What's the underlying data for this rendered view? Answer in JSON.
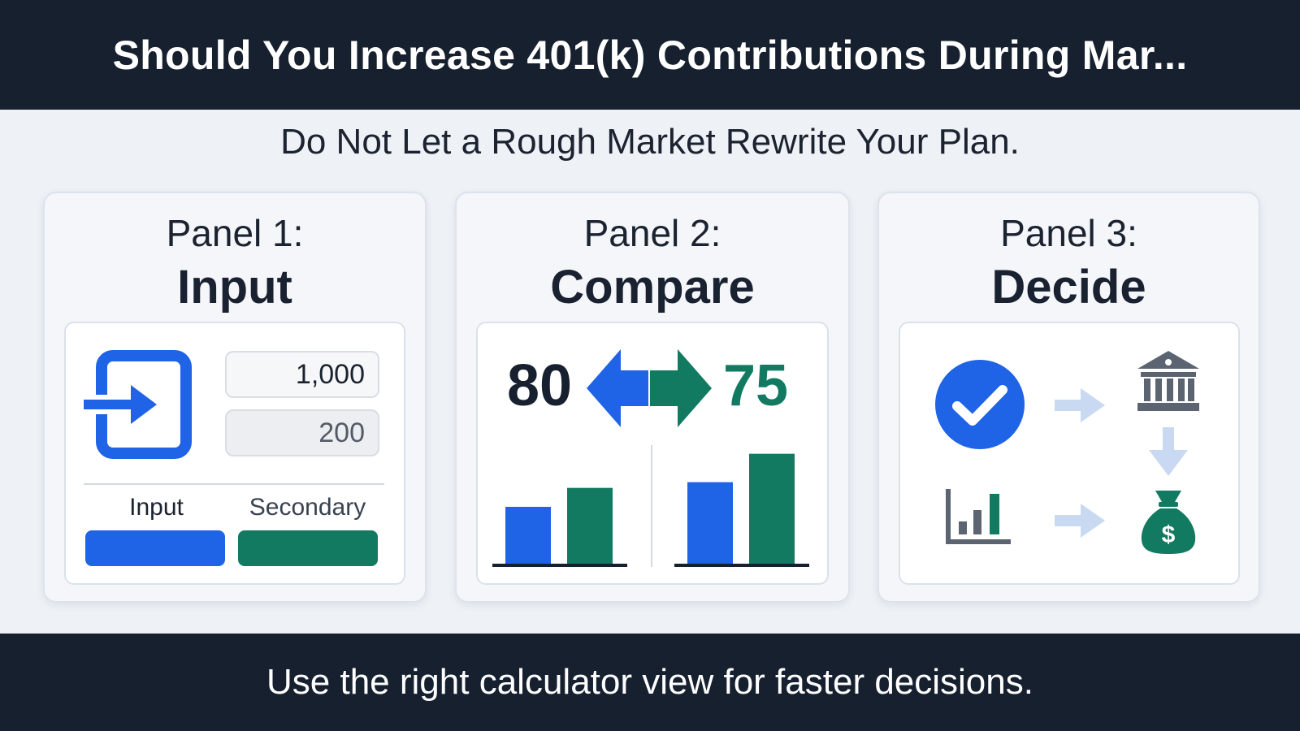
{
  "header": {
    "title": "Should You Increase 401(k) Contributions During Mar..."
  },
  "subtitle": "Do Not Let a Rough Market Rewrite Your Plan.",
  "panels": [
    {
      "number_label": "Panel 1:",
      "name": "Input",
      "icon": "login-icon",
      "fields": {
        "primary_value": "1,000",
        "secondary_value": "200"
      },
      "tabs": {
        "primary_label": "Input",
        "secondary_label": "Secondary"
      }
    },
    {
      "number_label": "Panel 2:",
      "name": "Compare",
      "left_value": "80",
      "right_value": "75",
      "icon": "swap-arrows-icon"
    },
    {
      "number_label": "Panel 3:",
      "name": "Decide",
      "icons": [
        "check-circle-icon",
        "arrow-right-icon",
        "bank-icon",
        "arrow-down-icon",
        "bar-chart-icon",
        "arrow-right-icon",
        "money-bag-icon"
      ]
    }
  ],
  "chart_data": [
    {
      "type": "bar",
      "categories": [
        "",
        ""
      ],
      "values": [
        3,
        4
      ]
    },
    {
      "type": "bar",
      "categories": [
        "",
        ""
      ],
      "values": [
        4.3,
        5.8
      ]
    }
  ],
  "colors": {
    "blue": "#1f63e6",
    "green": "#137a62",
    "dark": "#17202f",
    "gray": "#5c6472",
    "pale_blue": "#c9d9f2"
  },
  "footer": {
    "text": "Use the right calculator view for faster decisions."
  }
}
